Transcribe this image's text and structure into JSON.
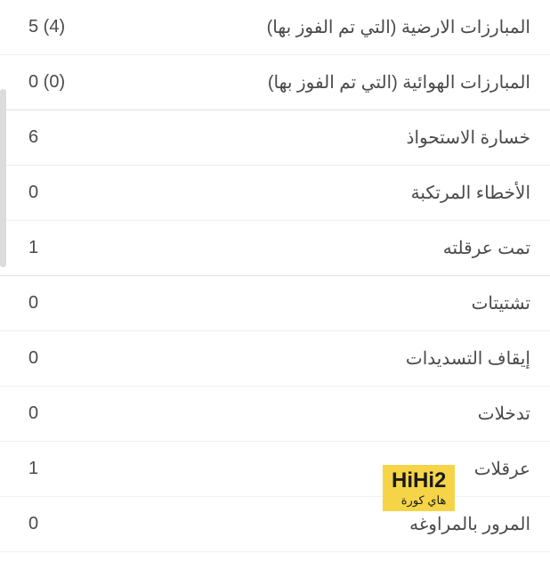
{
  "stats": {
    "rows": [
      {
        "label": "المبارزات الارضية (التي تم الفوز بها)",
        "value": "5 (4)",
        "section_end": false
      },
      {
        "label": "المبارزات الهوائية (التي تم الفوز بها)",
        "value": "0 (0)",
        "section_end": true
      },
      {
        "label": "خسارة الاستحواذ",
        "value": "6",
        "section_end": false
      },
      {
        "label": "الأخطاء المرتكبة",
        "value": "0",
        "section_end": false
      },
      {
        "label": "تمت عرقلته",
        "value": "1",
        "section_end": true
      },
      {
        "label": "تشتيتات",
        "value": "0",
        "section_end": false
      },
      {
        "label": "إيقاف التسديدات",
        "value": "0",
        "section_end": false
      },
      {
        "label": "تدخلات",
        "value": "0",
        "section_end": false
      },
      {
        "label": "عرقلات",
        "value": "1",
        "section_end": false
      },
      {
        "label": "المرور بالمراوغه",
        "value": "0",
        "section_end": false
      }
    ]
  },
  "watermark": {
    "brand": "HiHi2",
    "sub": "هاي كورة"
  },
  "colors": {
    "text": "#4a4a4a",
    "background": "#ffffff",
    "divider_light": "#f0f0f0",
    "divider_heavy": "#e0e0e0",
    "scrollbar": "#dcdcdc",
    "watermark_bg": "#f5d547",
    "watermark_text": "#1a1a1a"
  },
  "typography": {
    "stat_fontsize": 20,
    "watermark_brand_fontsize": 24,
    "watermark_sub_fontsize": 13
  }
}
